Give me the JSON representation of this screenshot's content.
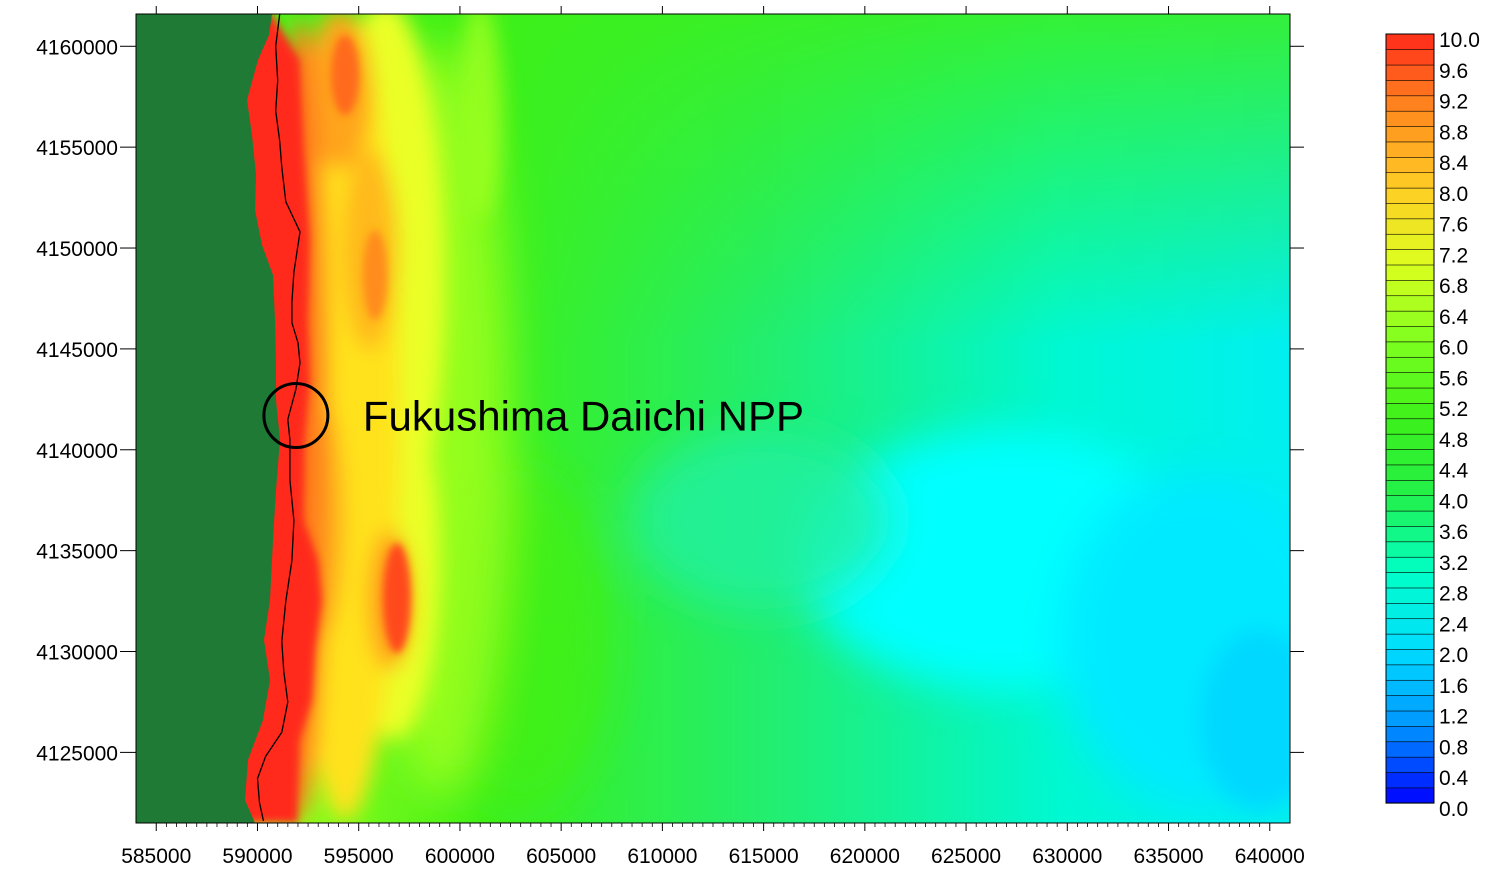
{
  "chart_data": {
    "type": "heatmap",
    "title": "",
    "xlabel": "",
    "ylabel": "",
    "xlim": [
      584000,
      641000
    ],
    "ylim": [
      4121500,
      4161600
    ],
    "x_ticks": [
      585000,
      590000,
      595000,
      600000,
      605000,
      610000,
      615000,
      620000,
      625000,
      630000,
      635000,
      640000
    ],
    "x_tick_labels": [
      "585000",
      "590000",
      "595000",
      "600000",
      "605000",
      "610000",
      "615000",
      "620000",
      "625000",
      "630000",
      "635000",
      "640000"
    ],
    "y_ticks": [
      4160000,
      4155000,
      4150000,
      4145000,
      4140000,
      4135000,
      4130000,
      4125000
    ],
    "y_tick_labels": [
      "4160000",
      "4155000",
      "4150000",
      "4145000",
      "4140000",
      "4135000",
      "4130000",
      "4125000"
    ],
    "colorbar": {
      "min": 0.0,
      "max": 10.0,
      "step": 0.2,
      "labels": [
        "10.0",
        "9.6",
        "9.2",
        "8.8",
        "8.4",
        "8.0",
        "7.6",
        "7.2",
        "6.8",
        "6.4",
        "6.0",
        "5.6",
        "5.2",
        "4.8",
        "4.4",
        "4.0",
        "3.6",
        "3.2",
        "2.8",
        "2.4",
        "2.0",
        "1.6",
        "1.2",
        "0.8",
        "0.4",
        "0.0"
      ]
    },
    "annotation": {
      "text": "Fukushima Daiichi NPP",
      "x": 591900,
      "y": 4141700
    },
    "coastline": [
      [
        590300,
        4121600
      ],
      [
        590100,
        4122500
      ],
      [
        590000,
        4123700
      ],
      [
        590400,
        4124800
      ],
      [
        591200,
        4126000
      ],
      [
        591500,
        4127500
      ],
      [
        591300,
        4129000
      ],
      [
        591200,
        4130500
      ],
      [
        591400,
        4132500
      ],
      [
        591700,
        4134500
      ],
      [
        591800,
        4136500
      ],
      [
        591600,
        4138500
      ],
      [
        591600,
        4140500
      ],
      [
        591500,
        4141500
      ],
      [
        591900,
        4143000
      ],
      [
        592100,
        4144300
      ],
      [
        592000,
        4145300
      ],
      [
        591700,
        4146300
      ],
      [
        591700,
        4147300
      ],
      [
        591800,
        4148800
      ],
      [
        592100,
        4150800
      ],
      [
        591400,
        4152300
      ],
      [
        591200,
        4154000
      ],
      [
        591100,
        4155300
      ],
      [
        590900,
        4156800
      ],
      [
        591000,
        4158300
      ],
      [
        590900,
        4160000
      ],
      [
        591100,
        4161600
      ]
    ],
    "colors": {
      "land": "#1e7a35",
      "ramp": [
        "#0000ff",
        "#0096ff",
        "#00dcff",
        "#00ffc8",
        "#22f04a",
        "#3df01a",
        "#7dff1f",
        "#dcff1e",
        "#ffcd25",
        "#ff8c1e",
        "#ff2a1a"
      ]
    }
  }
}
